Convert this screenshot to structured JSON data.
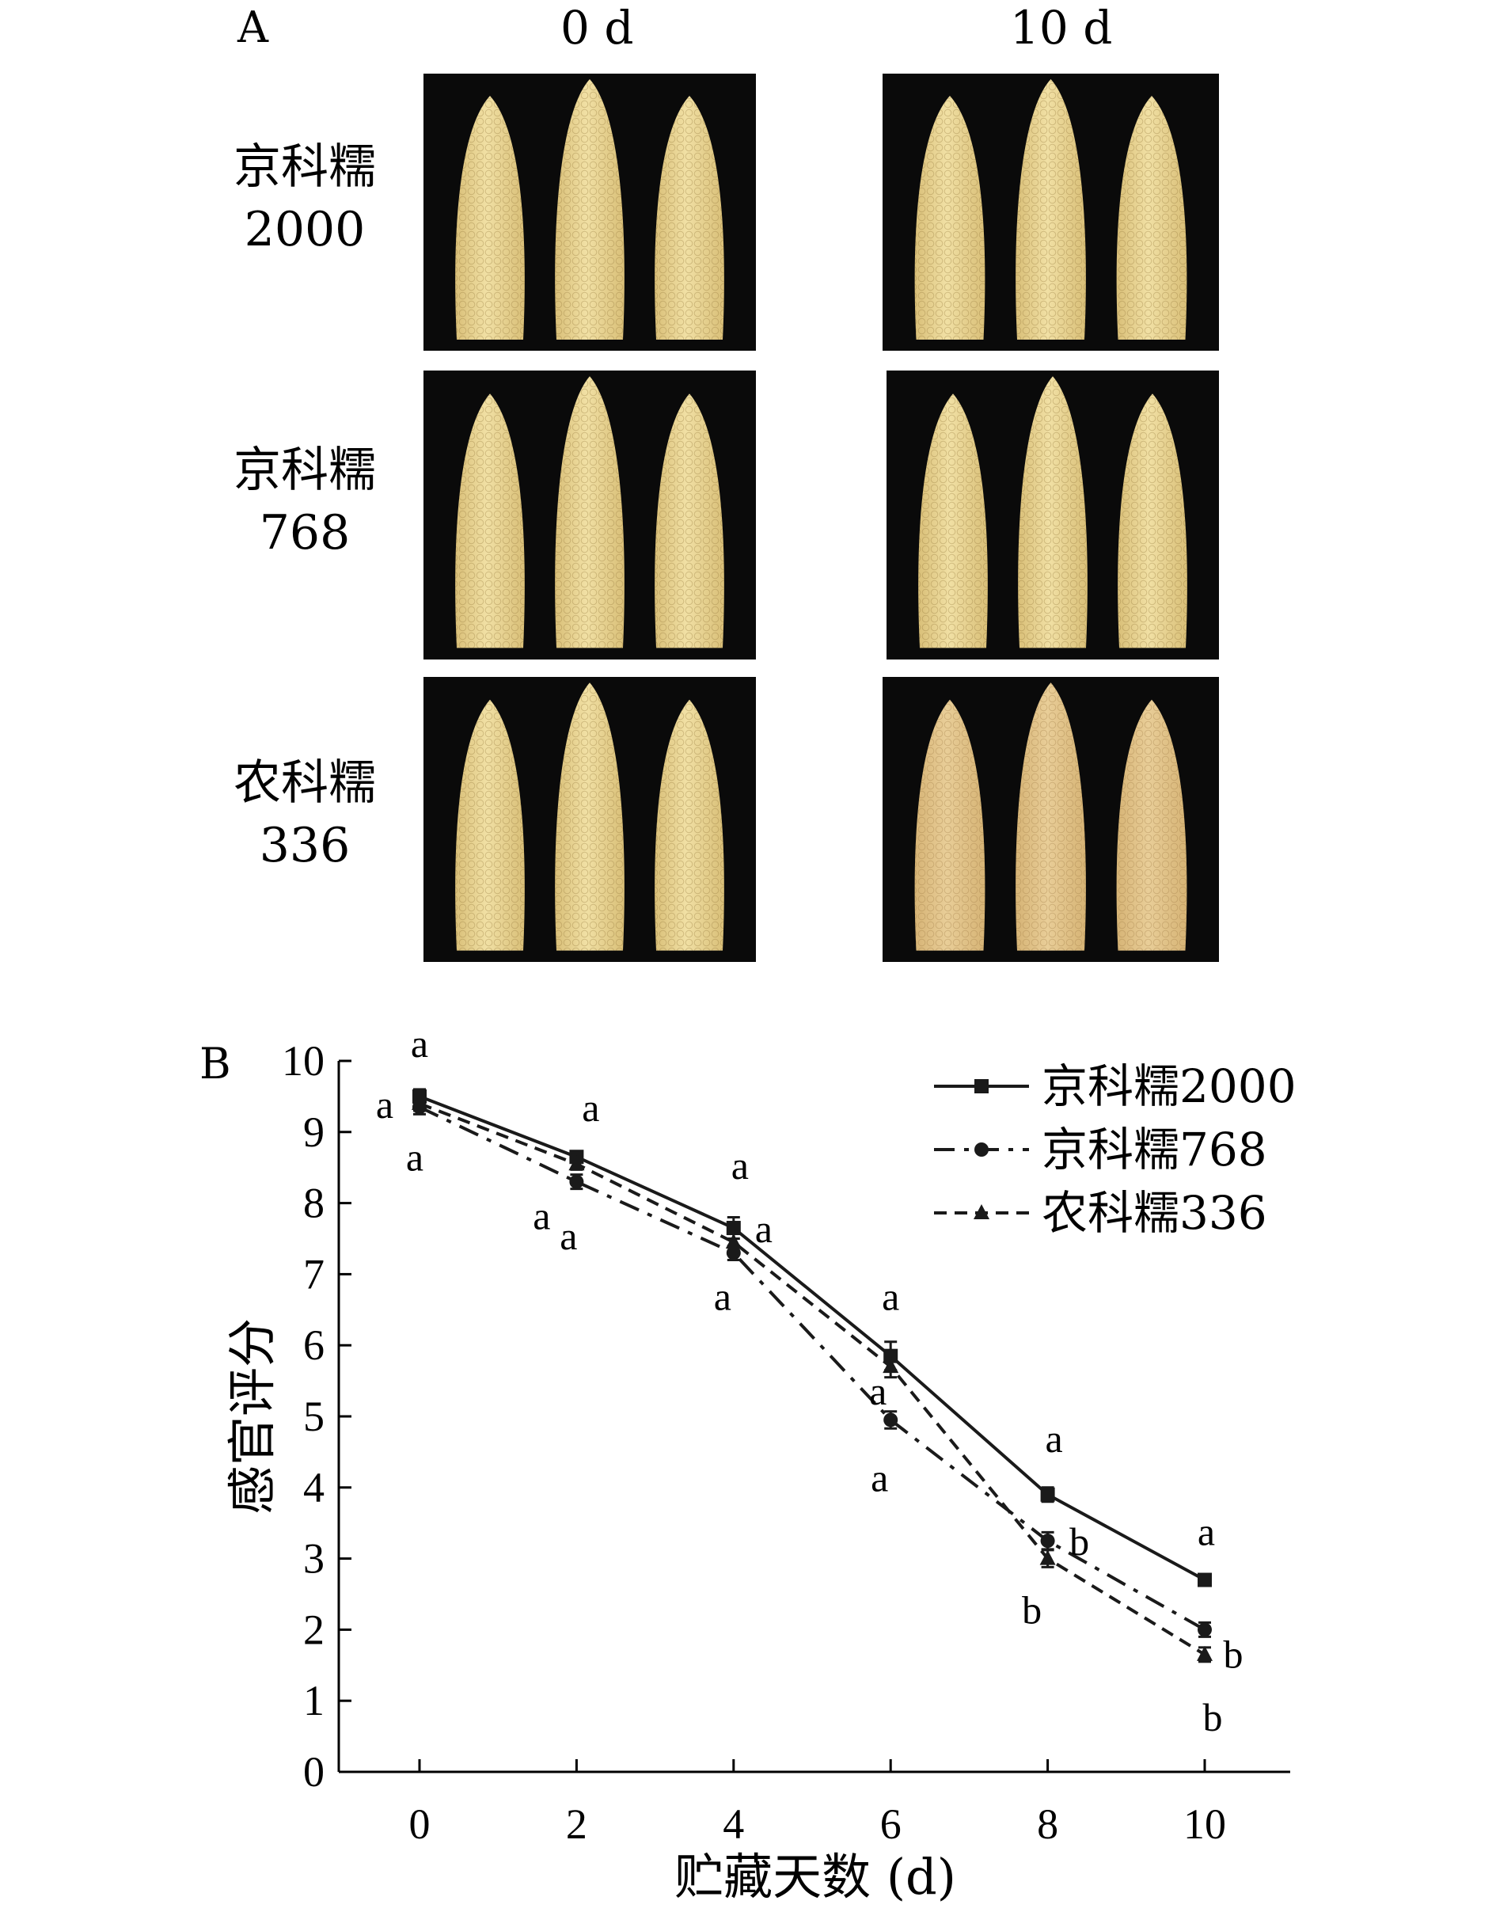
{
  "panel_a": {
    "letter": "A",
    "columns": [
      "0 d",
      "10 d"
    ],
    "rows": [
      {
        "name_line1": "京科糯",
        "name_line2": "2000"
      },
      {
        "name_line1": "京科糯",
        "name_line2": "768"
      },
      {
        "name_line1": "农科糯",
        "name_line2": "336"
      }
    ],
    "photo_description_colors": {
      "background": "#0a0a0a",
      "kernel": "#f1e0a4",
      "kernel_shadow": "#d9bf78"
    }
  },
  "panel_b": {
    "letter": "B"
  },
  "chart_data": {
    "type": "line",
    "title": "",
    "xlabel": "贮藏天数 (d)",
    "ylabel": "感官评分",
    "x": [
      0,
      2,
      4,
      6,
      8,
      10
    ],
    "xticks": [
      "0",
      "2",
      "4",
      "6",
      "8",
      "10"
    ],
    "yticks": [
      "0",
      "1",
      "2",
      "3",
      "4",
      "5",
      "6",
      "7",
      "8",
      "9",
      "10"
    ],
    "xlim": [
      -1,
      11
    ],
    "ylim": [
      0,
      10
    ],
    "grid": false,
    "legend_position": "top-right",
    "series": [
      {
        "name": "京科糯2000",
        "style": "solid",
        "marker": "square",
        "values": [
          9.5,
          8.65,
          7.65,
          5.85,
          3.9,
          2.7
        ],
        "errors": [
          0.1,
          0.08,
          0.15,
          0.2,
          0.1,
          0.08
        ],
        "letters": [
          "a",
          "a",
          "a",
          "a",
          "a",
          "a"
        ]
      },
      {
        "name": "京科糯768",
        "style": "dash-dot",
        "marker": "circle",
        "values": [
          9.35,
          8.3,
          7.3,
          4.95,
          3.25,
          2.0
        ],
        "errors": [
          0.1,
          0.1,
          0.1,
          0.12,
          0.12,
          0.1
        ],
        "letters": [
          "a",
          "a",
          "a",
          "a",
          "b",
          "b"
        ]
      },
      {
        "name": "农科糯336",
        "style": "dashed",
        "marker": "triangle",
        "values": [
          9.4,
          8.55,
          7.45,
          5.7,
          3.0,
          1.65
        ],
        "errors": [
          0.1,
          0.08,
          0.12,
          0.15,
          0.12,
          0.1
        ],
        "letters": [
          "a",
          "a",
          "a",
          "a",
          "b",
          "b"
        ]
      }
    ],
    "colors": {
      "line": "#1a1a1a"
    }
  }
}
